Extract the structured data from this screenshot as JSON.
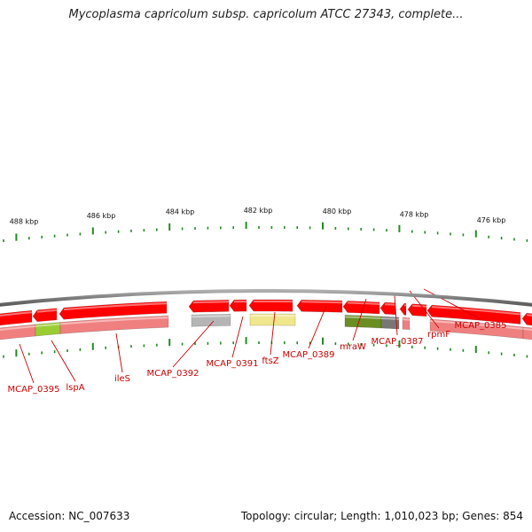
{
  "header": {
    "title": "Mycoplasma capricolum subsp. capricolum ATCC 27343, complete..."
  },
  "footer": {
    "accession": "Accession: NC_007633",
    "summary": "Topology: circular; Length: 1,010,023 bp; Genes: 854"
  },
  "colors": {
    "backbone": "#8a8a8a",
    "forward_gene": "#ff0000",
    "reverse_gene": "#f08080",
    "olive_gene": "#6b8e23",
    "lime_gene": "#9acd32",
    "gray_gene": "#777777",
    "light_gray_gene": "#b5b5b5",
    "yellow_gene": "#f0e68c",
    "tick": "#228b22",
    "label": "#cc0000"
  },
  "scale_labels": [
    "488 kbp",
    "486 kbp",
    "484 kbp",
    "482 kbp",
    "480 kbp",
    "478 kbp",
    "476 kbp"
  ],
  "gene_labels": [
    "MCAP_0395",
    "lspA",
    "ileS",
    "MCAP_0392",
    "MCAP_0391",
    "ftsZ",
    "MCAP_0389",
    "mraW",
    "MCAP_0387",
    "rpmF",
    "MCAP_0385"
  ]
}
